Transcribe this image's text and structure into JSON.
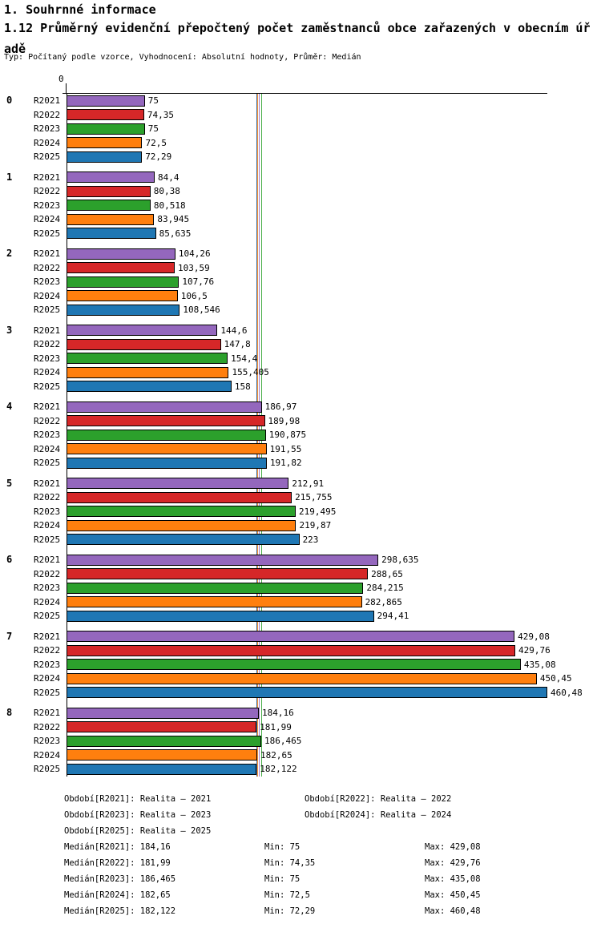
{
  "page": {
    "title": "1. Souhrnné informace",
    "subtitle": "1.12 Průměrný evidenční přepočtený počet zaměstnanců obce zařazených v obecním úřadě",
    "meta": "Typ: Počítaný podle vzorce, Vyhodnocení: Absolutní hodnoty, Průměr: Medián"
  },
  "chart_data": {
    "type": "bar",
    "orientation": "horizontal",
    "title": "1.12 Průměrný evidenční přepočtený počet zaměstnanců obce zařazených v obecním úřadě",
    "xlabel": "",
    "ylabel": "",
    "xlim": [
      0,
      461
    ],
    "grid": false,
    "legend_position": "bottom",
    "axis_origin_label": "0",
    "categories": [
      "0",
      "1",
      "2",
      "3",
      "4",
      "5",
      "6",
      "7",
      "8"
    ],
    "series": [
      {
        "name": "R2021",
        "color": "#9467bd",
        "values": [
          75,
          84.4,
          104.26,
          144.6,
          186.97,
          212.91,
          298.635,
          429.08,
          184.16
        ],
        "display": [
          "75",
          "84,4",
          "104,26",
          "144,6",
          "186,97",
          "212,91",
          "298,635",
          "429,08",
          "184,16"
        ]
      },
      {
        "name": "R2022",
        "color": "#d62728",
        "values": [
          74.35,
          80.38,
          103.59,
          147.8,
          189.98,
          215.755,
          288.65,
          429.76,
          181.99
        ],
        "display": [
          "74,35",
          "80,38",
          "103,59",
          "147,8",
          "189,98",
          "215,755",
          "288,65",
          "429,76",
          "181,99"
        ]
      },
      {
        "name": "R2023",
        "color": "#2ca02c",
        "values": [
          75,
          80.518,
          107.76,
          154.4,
          190.875,
          219.495,
          284.215,
          435.08,
          186.465
        ],
        "display": [
          "75",
          "80,518",
          "107,76",
          "154,4",
          "190,875",
          "219,495",
          "284,215",
          "435,08",
          "186,465"
        ]
      },
      {
        "name": "R2024",
        "color": "#ff7f0e",
        "values": [
          72.5,
          83.945,
          106.5,
          155.405,
          191.55,
          219.87,
          282.865,
          450.45,
          182.65
        ],
        "display": [
          "72,5",
          "83,945",
          "106,5",
          "155,405",
          "191,55",
          "219,87",
          "282,865",
          "450,45",
          "182,65"
        ]
      },
      {
        "name": "R2025",
        "color": "#1f77b4",
        "values": [
          72.29,
          85.635,
          108.546,
          158,
          191.82,
          223,
          294.41,
          460.48,
          182.122
        ],
        "display": [
          "72,29",
          "85,635",
          "108,546",
          "158",
          "191,82",
          "223",
          "294,41",
          "460,48",
          "182,122"
        ]
      }
    ],
    "median_lines": [
      {
        "series": "R2021",
        "value": 184.16
      },
      {
        "series": "R2022",
        "value": 181.99
      },
      {
        "series": "R2023",
        "value": 186.465
      },
      {
        "series": "R2024",
        "value": 182.65
      },
      {
        "series": "R2025",
        "value": 182.122
      }
    ]
  },
  "footer": {
    "periods": [
      "Období[R2021]: Realita – 2021",
      "Období[R2022]: Realita – 2022",
      "Období[R2023]: Realita – 2023",
      "Období[R2024]: Realita – 2024",
      "Období[R2025]: Realita – 2025"
    ],
    "stats": [
      {
        "median": "Medián[R2021]: 184,16",
        "min": "Min: 75",
        "max": "Max: 429,08"
      },
      {
        "median": "Medián[R2022]: 181,99",
        "min": "Min: 74,35",
        "max": "Max: 429,76"
      },
      {
        "median": "Medián[R2023]: 186,465",
        "min": "Min: 75",
        "max": "Max: 435,08"
      },
      {
        "median": "Medián[R2024]: 182,65",
        "min": "Min: 72,5",
        "max": "Max: 450,45"
      },
      {
        "median": "Medián[R2025]: 182,122",
        "min": "Min: 72,29",
        "max": "Max: 460,48"
      }
    ]
  }
}
